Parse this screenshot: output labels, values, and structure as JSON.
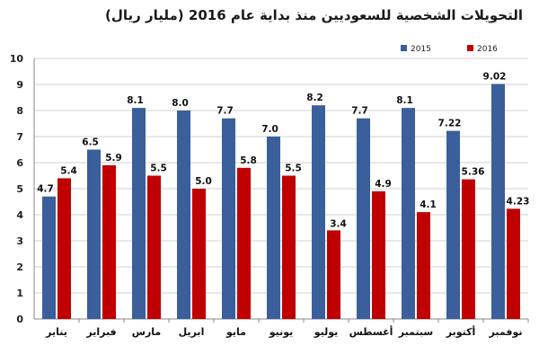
{
  "chart_data": {
    "type": "bar",
    "title": "التحويلات الشخصية للسعوديين منذ بداية عام 2016 (مليار ريال)",
    "categories": [
      "يناير",
      "فبراير",
      "مارس",
      "ابريل",
      "مايو",
      "يونيو",
      "يوليو",
      "أغسطس",
      "سبتمبر",
      "أكتوبر",
      "نوفمبر"
    ],
    "series": [
      {
        "name": "2015",
        "color": "#3A5F9A",
        "values": [
          4.7,
          6.5,
          8.1,
          8.0,
          7.7,
          7.0,
          8.2,
          7.7,
          8.1,
          7.22,
          9.02
        ],
        "labels": [
          "4.7",
          "6.5",
          "8.1",
          "8.0",
          "7.7",
          "7.0",
          "8.2",
          "7.7",
          "8.1",
          "7.22",
          "9.02"
        ]
      },
      {
        "name": "2016",
        "color": "#C00000",
        "values": [
          5.4,
          5.9,
          5.5,
          5.0,
          5.8,
          5.5,
          3.4,
          4.9,
          4.1,
          5.36,
          4.23
        ],
        "labels": [
          "5.4",
          "5.9",
          "5.5",
          "5.0",
          "5.8",
          "5.5",
          "3.4",
          "4.9",
          "4.1",
          "5.36",
          "4.23"
        ]
      }
    ],
    "ylim": [
      0,
      10
    ],
    "yticks": [
      "0",
      "1",
      "2",
      "3",
      "4",
      "5",
      "6",
      "7",
      "8",
      "9",
      "10"
    ],
    "grid": true,
    "legend": "top-right"
  }
}
